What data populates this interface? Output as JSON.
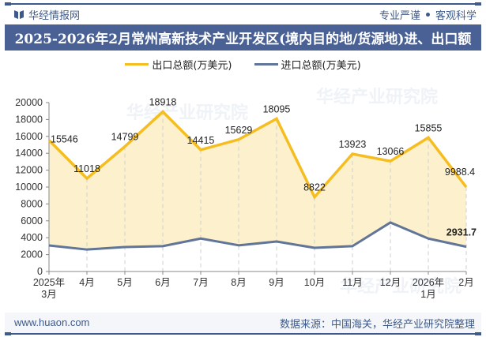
{
  "header": {
    "brand": "华经情报网",
    "slogan_left": "专业严谨",
    "slogan_right": "客观科学",
    "title": "2025-2026年2月常州高新技术产业开发区(境内目的地/货源地)进、出口额"
  },
  "legend": [
    {
      "label": "出口总额(万美元)",
      "color": "#f5bd1f"
    },
    {
      "label": "进口总额(万美元)",
      "color": "#617598"
    }
  ],
  "footer": {
    "website": "www.huaon.com",
    "source": "数据来源：中国海关，华经产业研究院整理"
  },
  "watermark": "华经产业研究院",
  "colors": {
    "export_line": "#f5bd1f",
    "export_fill": "#fdefc8",
    "import_line": "#617598",
    "title_bar": "#4a6195",
    "brand": "#3d5a8a"
  },
  "chart_data": {
    "type": "line",
    "title": "2025-2026年2月常州高新技术产业开发区(境内目的地/货源地)进、出口额",
    "categories": [
      "2025年3月",
      "4月",
      "5月",
      "6月",
      "7月",
      "8月",
      "9月",
      "10月",
      "11月",
      "12月",
      "2026年1月",
      "2月"
    ],
    "series": [
      {
        "name": "出口总额(万美元)",
        "values": [
          15546,
          11018,
          14799,
          18918,
          14415,
          15629,
          18095,
          8822,
          13923,
          13066,
          15855,
          9988.4
        ],
        "labels_shown": true
      },
      {
        "name": "进口总额(万美元)",
        "values": [
          3080,
          2600,
          2900,
          3000,
          3900,
          3100,
          3550,
          2800,
          3000,
          5800,
          3900,
          2931.7
        ],
        "labels_shown": "last only"
      }
    ],
    "data_labels": [
      "15546",
      "11018",
      "14799",
      "18918",
      "14415",
      "15629",
      "18095",
      "8822",
      "13923",
      "13066",
      "15855",
      "9988.4"
    ],
    "import_last_label": "2931.7",
    "yticks": [
      "0",
      "2000",
      "4000",
      "6000",
      "8000",
      "10000",
      "12000",
      "14000",
      "16000",
      "18000",
      "20000"
    ],
    "ylim": [
      0,
      20000
    ],
    "xlabel": "",
    "ylabel": "",
    "grid": "vertical dashed",
    "legend_position": "top"
  }
}
